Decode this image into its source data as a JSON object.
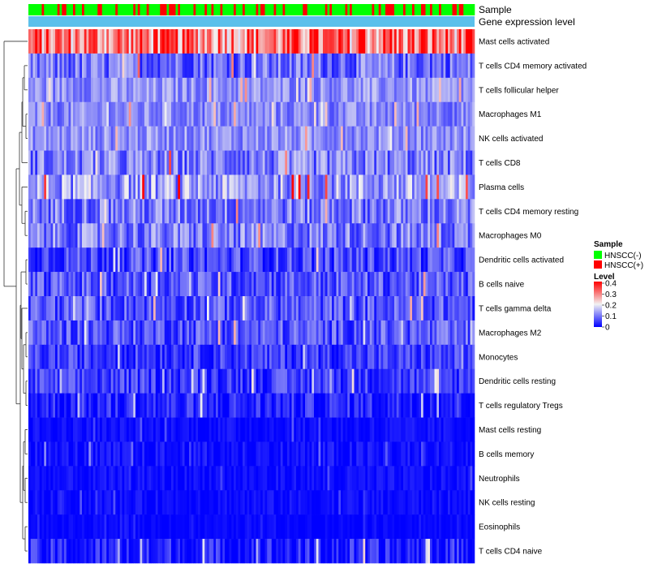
{
  "chart_data": {
    "type": "heatmap",
    "annotation_tracks": [
      {
        "label": "Sample",
        "type": "categorical"
      },
      {
        "label": "Gene expression level",
        "type": "continuous",
        "color": "#5bc0eb"
      }
    ],
    "rows": [
      {
        "label": "Mast cells activated",
        "mean": 0.3,
        "spread": 0.12
      },
      {
        "label": "T cells CD4 memory activated",
        "mean": 0.09,
        "spread": 0.07
      },
      {
        "label": "T cells follicular helper",
        "mean": 0.12,
        "spread": 0.05
      },
      {
        "label": "Macrophages M1",
        "mean": 0.11,
        "spread": 0.05
      },
      {
        "label": "NK cells activated",
        "mean": 0.12,
        "spread": 0.05
      },
      {
        "label": "T cells CD8",
        "mean": 0.1,
        "spread": 0.07
      },
      {
        "label": "Plasma cells",
        "mean": 0.13,
        "spread": 0.08
      },
      {
        "label": "T cells CD4 memory resting",
        "mean": 0.1,
        "spread": 0.07
      },
      {
        "label": "Macrophages M0",
        "mean": 0.1,
        "spread": 0.07
      },
      {
        "label": "Dendritic cells activated",
        "mean": 0.06,
        "spread": 0.06
      },
      {
        "label": "B cells naive",
        "mean": 0.07,
        "spread": 0.06
      },
      {
        "label": "T cells gamma delta",
        "mean": 0.07,
        "spread": 0.06
      },
      {
        "label": "Macrophages M2",
        "mean": 0.07,
        "spread": 0.06
      },
      {
        "label": "Monocytes",
        "mean": 0.05,
        "spread": 0.05
      },
      {
        "label": "Dendritic cells resting",
        "mean": 0.05,
        "spread": 0.05
      },
      {
        "label": "T cells regulatory  Tregs",
        "mean": 0.03,
        "spread": 0.05
      },
      {
        "label": "Mast cells resting",
        "mean": 0.01,
        "spread": 0.02
      },
      {
        "label": "B cells memory",
        "mean": 0.01,
        "spread": 0.03
      },
      {
        "label": "Neutrophils",
        "mean": 0.01,
        "spread": 0.02
      },
      {
        "label": "NK cells resting",
        "mean": 0.01,
        "spread": 0.02
      },
      {
        "label": "Eosinophils",
        "mean": 0.005,
        "spread": 0.01
      },
      {
        "label": "T cells CD4 naive",
        "mean": 0.02,
        "spread": 0.06
      }
    ],
    "n_samples": 200,
    "sample_groups": [
      "HNSCC(-)",
      "HNSCC(+)"
    ],
    "sample_group_fraction_positive": 0.3,
    "legend": {
      "sample_title": "Sample",
      "sample_entries": [
        {
          "label": "HNSCC(-)",
          "color": "#00ff00"
        },
        {
          "label": "HNSCC(+)",
          "color": "#ff0000"
        }
      ],
      "level_title": "Level",
      "level_ticks": [
        "0.4",
        "0.3",
        "0.2",
        "0.1",
        "0"
      ],
      "level_range": [
        0,
        0.4
      ],
      "placement": "right"
    },
    "color_scale": {
      "low": "#0000ff",
      "mid": "#f2f2f2",
      "high": "#ff0000",
      "midpoint": 0.2
    },
    "row_dendrogram": true,
    "column_dendrogram": false
  }
}
